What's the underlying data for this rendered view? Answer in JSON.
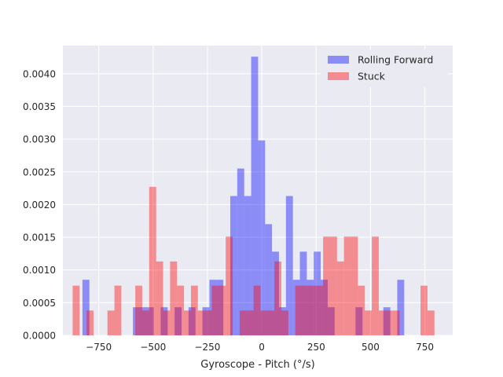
{
  "chart_data": {
    "type": "histogram",
    "title": "",
    "xlabel": "Gyroscope - Pitch (°/s)",
    "ylabel": "",
    "xlim": [
      -915,
      878
    ],
    "ylim": [
      0,
      0.00443
    ],
    "xticks": [
      -750,
      -500,
      -250,
      0,
      250,
      500,
      750
    ],
    "xtick_labels": [
      "−750",
      "−500",
      "−250",
      "0",
      "250",
      "500",
      "750"
    ],
    "yticks": [
      0.0,
      0.0005,
      0.001,
      0.0015,
      0.002,
      0.0025,
      0.003,
      0.0035,
      0.004
    ],
    "ytick_labels": [
      "0.0000",
      "0.0005",
      "0.0010",
      "0.0015",
      "0.0020",
      "0.0025",
      "0.0030",
      "0.0035",
      "0.0040"
    ],
    "grid": true,
    "background": "#eaeaf2",
    "legend_position": "top-right",
    "series": [
      {
        "name": "Rolling Forward",
        "color": "#0000ff",
        "alpha": 0.4,
        "bins": [
          [
            -825,
            -793,
            0.00085
          ],
          [
            -593,
            -561,
            0.00043
          ],
          [
            -561,
            -529,
            0.00043
          ],
          [
            -529,
            -497,
            0.00043
          ],
          [
            -465,
            -433,
            0.00043
          ],
          [
            -401,
            -369,
            0.00043
          ],
          [
            -337,
            -305,
            0.00043
          ],
          [
            -273,
            -241,
            0.00043
          ],
          [
            -241,
            -209,
            0.00085
          ],
          [
            -209,
            -177,
            0.00085
          ],
          [
            -145,
            -113,
            0.00213
          ],
          [
            -113,
            -81,
            0.00255
          ],
          [
            -81,
            -49,
            0.00213
          ],
          [
            -49,
            -17,
            0.00426
          ],
          [
            -17,
            15,
            0.00298
          ],
          [
            15,
            47,
            0.0017
          ],
          [
            47,
            79,
            0.00128
          ],
          [
            79,
            111,
            0.00043
          ],
          [
            111,
            143,
            0.00213
          ],
          [
            143,
            175,
            0.00085
          ],
          [
            175,
            207,
            0.00128
          ],
          [
            207,
            239,
            0.00085
          ],
          [
            239,
            271,
            0.00128
          ],
          [
            271,
            303,
            0.00085
          ],
          [
            303,
            335,
            0.00043
          ],
          [
            431,
            463,
            0.00043
          ],
          [
            559,
            591,
            0.00043
          ],
          [
            623,
            655,
            0.00085
          ]
        ]
      },
      {
        "name": "Stuck",
        "color": "#ff0000",
        "alpha": 0.4,
        "bins": [
          [
            -870,
            -838,
            0.00076
          ],
          [
            -806,
            -774,
            0.00038
          ],
          [
            -710,
            -678,
            0.00038
          ],
          [
            -678,
            -646,
            0.00076
          ],
          [
            -582,
            -550,
            0.00076
          ],
          [
            -550,
            -518,
            0.00038
          ],
          [
            -518,
            -486,
            0.00227
          ],
          [
            -486,
            -454,
            0.00113
          ],
          [
            -454,
            -422,
            0.00038
          ],
          [
            -422,
            -390,
            0.00113
          ],
          [
            -390,
            -358,
            0.00076
          ],
          [
            -358,
            -326,
            0.00038
          ],
          [
            -326,
            -294,
            0.00076
          ],
          [
            -294,
            -262,
            0.00038
          ],
          [
            -262,
            -230,
            0.00038
          ],
          [
            -230,
            -198,
            0.00076
          ],
          [
            -198,
            -166,
            0.00076
          ],
          [
            -166,
            -134,
            0.00151
          ],
          [
            -102,
            -70,
            0.00038
          ],
          [
            -70,
            -38,
            0.00038
          ],
          [
            -38,
            -6,
            0.00076
          ],
          [
            -6,
            26,
            0.00038
          ],
          [
            26,
            58,
            0.00038
          ],
          [
            58,
            90,
            0.00113
          ],
          [
            90,
            122,
            0.00038
          ],
          [
            154,
            186,
            0.00076
          ],
          [
            186,
            218,
            0.00076
          ],
          [
            218,
            250,
            0.00076
          ],
          [
            250,
            282,
            0.00076
          ],
          [
            282,
            314,
            0.00151
          ],
          [
            314,
            346,
            0.00151
          ],
          [
            346,
            378,
            0.00113
          ],
          [
            378,
            410,
            0.00151
          ],
          [
            410,
            442,
            0.00151
          ],
          [
            442,
            474,
            0.00076
          ],
          [
            474,
            506,
            0.00038
          ],
          [
            506,
            538,
            0.00151
          ],
          [
            538,
            570,
            0.00038
          ],
          [
            570,
            602,
            0.00038
          ],
          [
            602,
            634,
            0.00038
          ],
          [
            730,
            762,
            0.00076
          ],
          [
            762,
            794,
            0.00038
          ]
        ]
      }
    ]
  }
}
